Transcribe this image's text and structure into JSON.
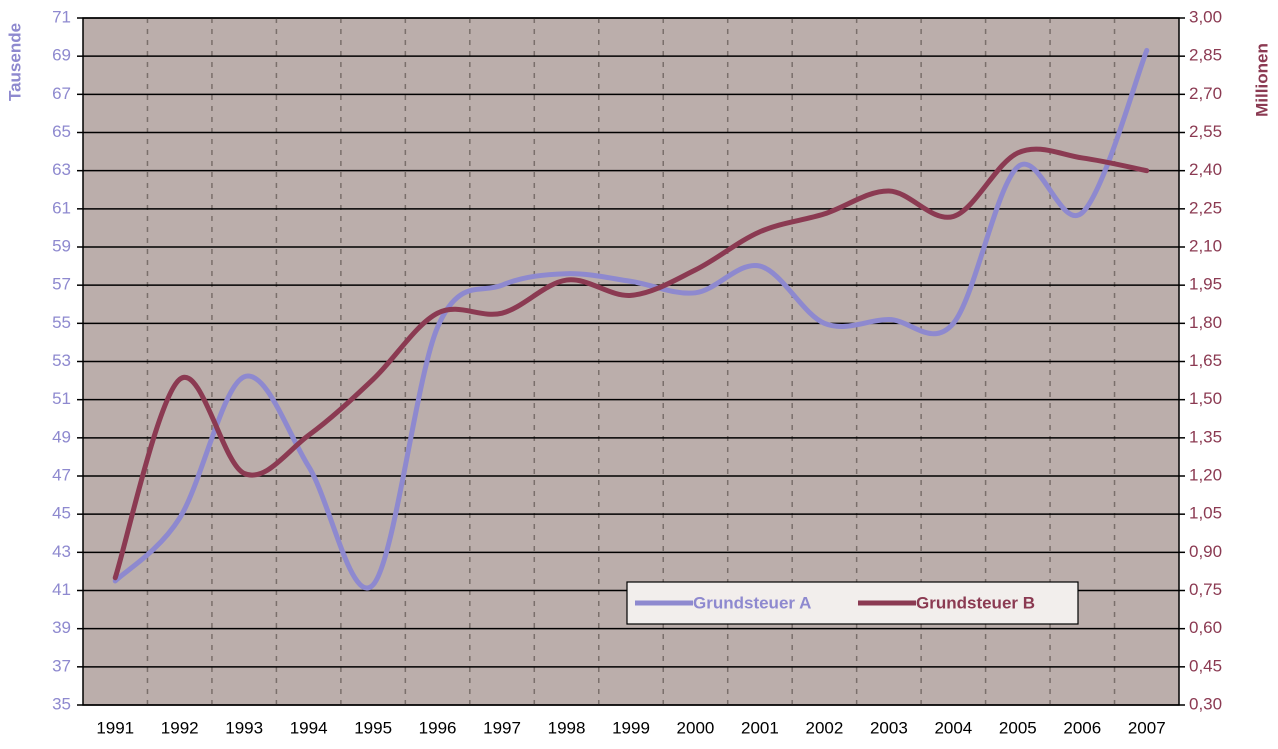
{
  "chart_data": {
    "type": "line",
    "categories": [
      "1991",
      "1992",
      "1993",
      "1994",
      "1995",
      "1996",
      "1997",
      "1998",
      "1999",
      "2000",
      "2001",
      "2002",
      "2003",
      "2004",
      "2005",
      "2006",
      "2007"
    ],
    "series": [
      {
        "name": "Grundsteuer A",
        "color": "#8e89cf",
        "values": [
          41.5,
          44.8,
          52.2,
          47.5,
          41.3,
          54.8,
          57.0,
          57.6,
          57.2,
          56.6,
          58.0,
          55.0,
          55.2,
          55.0,
          63.2,
          60.8,
          69.3
        ]
      },
      {
        "name": "Grundsteuer B",
        "color": "#8b3a52",
        "axis": "y2",
        "values": [
          0.8,
          1.58,
          1.21,
          1.36,
          1.58,
          1.84,
          1.84,
          1.97,
          1.91,
          2.01,
          2.16,
          2.23,
          2.32,
          2.22,
          2.47,
          2.45,
          2.4
        ]
      }
    ],
    "y_label": "Tausende",
    "y2_label": "Millionen",
    "ylim": [
      35,
      71
    ],
    "yticks": [
      35,
      37,
      39,
      41,
      43,
      45,
      47,
      49,
      51,
      53,
      55,
      57,
      59,
      61,
      63,
      65,
      67,
      69,
      71
    ],
    "y2lim": [
      0.3,
      3.0
    ],
    "y2ticks": [
      {
        "value": 0.3,
        "label": "0,30"
      },
      {
        "value": 0.45,
        "label": "0,45"
      },
      {
        "value": 0.6,
        "label": "0,60"
      },
      {
        "value": 0.75,
        "label": "0,75"
      },
      {
        "value": 0.9,
        "label": "0,90"
      },
      {
        "value": 1.05,
        "label": "1,05"
      },
      {
        "value": 1.2,
        "label": "1,20"
      },
      {
        "value": 1.35,
        "label": "1,35"
      },
      {
        "value": 1.5,
        "label": "1,50"
      },
      {
        "value": 1.65,
        "label": "1,65"
      },
      {
        "value": 1.8,
        "label": "1,80"
      },
      {
        "value": 1.95,
        "label": "1,95"
      },
      {
        "value": 2.1,
        "label": "2,10"
      },
      {
        "value": 2.25,
        "label": "2,25"
      },
      {
        "value": 2.4,
        "label": "2,40"
      },
      {
        "value": 2.55,
        "label": "2,55"
      },
      {
        "value": 2.7,
        "label": "2,70"
      },
      {
        "value": 2.85,
        "label": "2,85"
      },
      {
        "value": 3.0,
        "label": "3,00"
      }
    ],
    "grid": true
  }
}
